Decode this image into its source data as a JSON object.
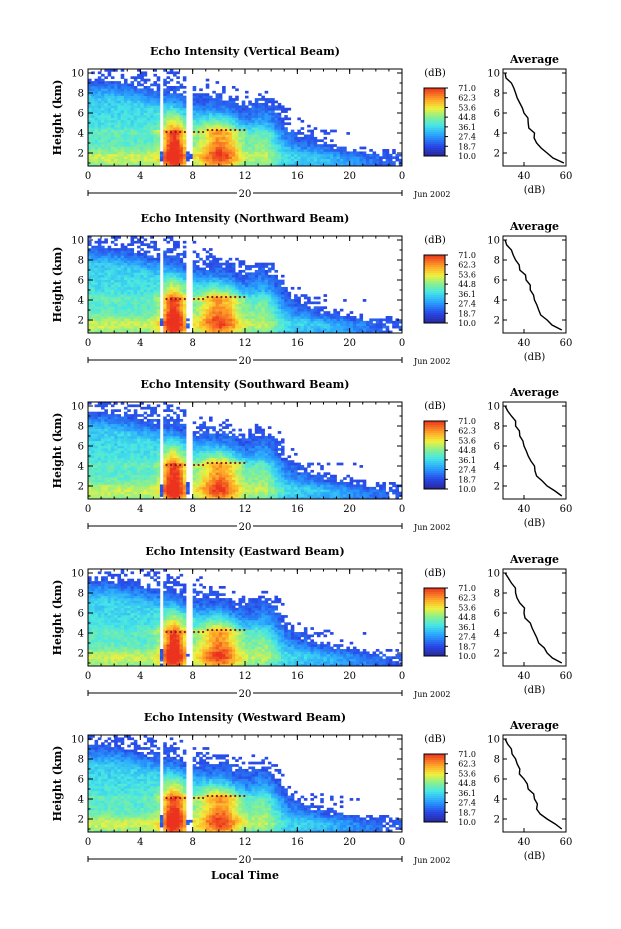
{
  "figure": {
    "xlabel": "Local Time",
    "colorbar_unit": "(dB)",
    "colorbar_levels": [
      "71.0",
      "62.3",
      "53.6",
      "44.8",
      "36.1",
      "27.4",
      "18.7",
      "10.0"
    ],
    "colorbar_min": 10.0,
    "colorbar_max": 71.0,
    "date_label": "Jun 2002",
    "day_label": "20",
    "avg_title": "Average",
    "avg_xlabel": "(dB)"
  },
  "chart_data": [
    {
      "type": "heatmap",
      "title": "Echo Intensity (Vertical Beam)",
      "xlabel": "",
      "ylabel": "Height (km)",
      "xticks": [
        "0",
        "4",
        "8",
        "12",
        "16",
        "20",
        "0"
      ],
      "xlim": [
        0,
        24
      ],
      "ylim": [
        0.7,
        10.4
      ],
      "yticks": [
        "2",
        "4",
        "6",
        "8",
        "10"
      ],
      "profile": {
        "title": "Average",
        "xlabel": "(dB)",
        "xlim": [
          30,
          60
        ],
        "ylim": [
          0.7,
          10.4
        ],
        "xticks": [
          "40",
          "60"
        ],
        "yticks": [
          "2",
          "4",
          "6",
          "8",
          "10"
        ],
        "height_km": [
          1.0,
          2.0,
          3.0,
          4.0,
          5.0,
          6.0,
          7.0,
          8.0,
          9.0,
          10.0
        ],
        "values_db": [
          59,
          51,
          46,
          45,
          42,
          40,
          38,
          36,
          34,
          31
        ]
      }
    },
    {
      "type": "heatmap",
      "title": "Echo Intensity (Northward Beam)",
      "xlabel": "",
      "ylabel": "Height (km)",
      "xticks": [
        "0",
        "4",
        "8",
        "12",
        "16",
        "20",
        "0"
      ],
      "xlim": [
        0,
        24
      ],
      "ylim": [
        0.7,
        10.4
      ],
      "yticks": [
        "2",
        "4",
        "6",
        "8",
        "10"
      ],
      "profile": {
        "title": "Average",
        "xlabel": "(dB)",
        "xlim": [
          30,
          60
        ],
        "ylim": [
          0.7,
          10.4
        ],
        "xticks": [
          "40",
          "60"
        ],
        "yticks": [
          "2",
          "4",
          "6",
          "8",
          "10"
        ],
        "height_km": [
          1.0,
          2.0,
          3.0,
          4.0,
          5.0,
          6.0,
          7.0,
          8.0,
          9.0,
          10.0
        ],
        "values_db": [
          58,
          51,
          47,
          45,
          43,
          41,
          38,
          36,
          34,
          31
        ]
      }
    },
    {
      "type": "heatmap",
      "title": "Echo Intensity (Southward Beam)",
      "xlabel": "",
      "ylabel": "Height (km)",
      "xticks": [
        "0",
        "4",
        "8",
        "12",
        "16",
        "20",
        "0"
      ],
      "xlim": [
        0,
        24
      ],
      "ylim": [
        0.7,
        10.4
      ],
      "yticks": [
        "2",
        "4",
        "6",
        "8",
        "10"
      ],
      "profile": {
        "title": "Average",
        "xlabel": "(dB)",
        "xlim": [
          30,
          60
        ],
        "ylim": [
          0.7,
          10.4
        ],
        "xticks": [
          "40",
          "60"
        ],
        "yticks": [
          "2",
          "4",
          "6",
          "8",
          "10"
        ],
        "height_km": [
          1.0,
          2.0,
          3.0,
          4.0,
          5.0,
          6.0,
          7.0,
          8.0,
          9.0,
          10.0
        ],
        "values_db": [
          58,
          51,
          46,
          45,
          42,
          40,
          38,
          36,
          34,
          31
        ]
      }
    },
    {
      "type": "heatmap",
      "title": "Echo Intensity (Eastward Beam)",
      "xlabel": "",
      "ylabel": "Height (km)",
      "xticks": [
        "0",
        "4",
        "8",
        "12",
        "16",
        "20",
        "0"
      ],
      "xlim": [
        0,
        24
      ],
      "ylim": [
        0.7,
        10.4
      ],
      "yticks": [
        "2",
        "4",
        "6",
        "8",
        "10"
      ],
      "profile": {
        "title": "Average",
        "xlabel": "(dB)",
        "xlim": [
          30,
          60
        ],
        "ylim": [
          0.7,
          10.4
        ],
        "xticks": [
          "40",
          "60"
        ],
        "yticks": [
          "2",
          "4",
          "6",
          "8",
          "10"
        ],
        "height_km": [
          1.0,
          2.0,
          3.0,
          4.0,
          5.0,
          6.0,
          7.0,
          8.0,
          9.0,
          10.0
        ],
        "values_db": [
          58,
          51,
          47,
          45,
          43,
          40,
          38,
          36,
          34,
          31
        ]
      }
    },
    {
      "type": "heatmap",
      "title": "Echo Intensity (Westward Beam)",
      "xlabel": "Local Time",
      "ylabel": "Height (km)",
      "xticks": [
        "0",
        "4",
        "8",
        "12",
        "16",
        "20",
        "0"
      ],
      "xlim": [
        0,
        24
      ],
      "ylim": [
        0.7,
        10.4
      ],
      "yticks": [
        "2",
        "4",
        "6",
        "8",
        "10"
      ],
      "profile": {
        "title": "Average",
        "xlabel": "(dB)",
        "xlim": [
          30,
          60
        ],
        "ylim": [
          0.7,
          10.4
        ],
        "xticks": [
          "40",
          "60"
        ],
        "yticks": [
          "2",
          "4",
          "6",
          "8",
          "10"
        ],
        "height_km": [
          1.0,
          2.0,
          3.0,
          4.0,
          5.0,
          6.0,
          7.0,
          8.0,
          9.0,
          10.0
        ],
        "values_db": [
          58,
          51,
          46,
          45,
          42,
          40,
          38,
          36,
          34,
          31
        ]
      }
    }
  ]
}
